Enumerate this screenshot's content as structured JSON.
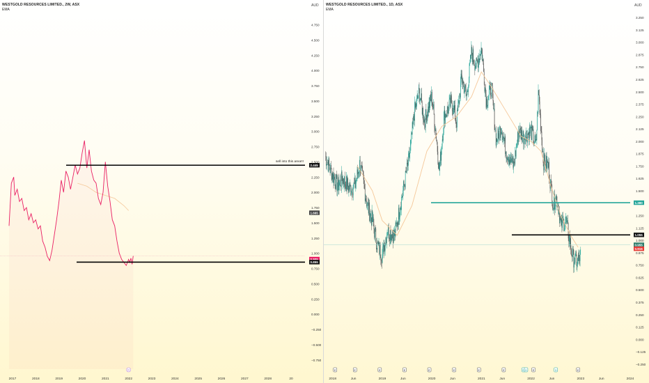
{
  "panes": [
    {
      "symbol": "WESTGOLD RESOURCES LIMITED., 2W, ASX",
      "indicator": "EMA",
      "currency": "AUD",
      "y_ticks": [
        "4.750",
        "4.500",
        "4.250",
        "4.000",
        "3.750",
        "3.500",
        "3.250",
        "3.000",
        "2.750",
        "2.500",
        "2.250",
        "2.000",
        "1.750",
        "1.500",
        "1.250",
        "1.000",
        "0.750",
        "0.500",
        "0.250",
        "0.000",
        "−0.250",
        "−0.500",
        "−0.750"
      ],
      "x_ticks": [
        "2017",
        "2018",
        "2019",
        "2020",
        "2021",
        "2022",
        "2023",
        "2024",
        "2025",
        "2026",
        "2027",
        "2028",
        "20"
      ],
      "annotation": "sell into this area!!!",
      "price_labels": [
        "2.445",
        "1.665",
        "0.905",
        "0.855"
      ],
      "event_markers": [
        "D"
      ],
      "colors": {
        "price": "#e91e63",
        "ema": "#f5c89a",
        "levels": "#000000"
      }
    },
    {
      "symbol": "WESTGOLD RESOURCES LIMITED., 1D, ASX",
      "indicator": "EMA",
      "currency": "AUD",
      "y_ticks": [
        "3.250",
        "3.125",
        "3.000",
        "2.875",
        "2.750",
        "2.625",
        "2.500",
        "2.375",
        "2.250",
        "2.125",
        "2.000",
        "1.875",
        "1.750",
        "1.625",
        "1.500",
        "1.375",
        "1.250",
        "1.125",
        "1.000",
        "0.875",
        "0.750",
        "0.625",
        "0.500",
        "0.375",
        "0.250",
        "0.125",
        "0.000",
        "−0.125",
        "−0.250"
      ],
      "x_ticks": [
        "2018",
        "Jun",
        "2019",
        "Jun",
        "2020",
        "Jun",
        "2021",
        "Jun",
        "2022",
        "Jun",
        "2023",
        "Jun",
        "2024"
      ],
      "price_labels": [
        "1.380",
        "1.055",
        "0.955",
        "0.915"
      ],
      "event_markers": [
        "E",
        "E",
        "E",
        "E",
        "E",
        "E",
        "E",
        "E",
        "D",
        "D",
        "E",
        "D",
        "E"
      ],
      "colors": {
        "candle_up": "#26a69a",
        "candle_down": "#555555",
        "ema": "#f5c89a",
        "level_teal": "#26a69a",
        "level_black": "#000000"
      }
    }
  ],
  "chart_data": [
    {
      "type": "line",
      "title": "WESTGOLD RESOURCES LIMITED., 2W, ASX",
      "xlabel": "",
      "ylabel": "AUD",
      "xlim": [
        2016.7,
        2029.6
      ],
      "ylim": [
        -0.9,
        4.95
      ],
      "grid": false,
      "series": [
        {
          "name": "",
          "x": [
            2016.85,
            2016.95,
            2017.05,
            2017.1,
            2017.2,
            2017.3,
            2017.4,
            2017.5,
            2017.6,
            2017.7,
            2017.8,
            2017.9,
            2018.0,
            2018.1,
            2018.2,
            2018.3,
            2018.4,
            2018.5,
            2018.6,
            2018.7,
            2018.8,
            2018.9,
            2019.0,
            2019.1,
            2019.2,
            2019.3,
            2019.4,
            2019.5,
            2019.6,
            2019.7,
            2019.8,
            2019.9,
            2020.0,
            2020.1,
            2020.2,
            2020.3,
            2020.4,
            2020.5,
            2020.6,
            2020.7,
            2020.8,
            2020.9,
            2021.0,
            2021.1,
            2021.2,
            2021.3,
            2021.4,
            2021.5,
            2021.6,
            2021.7,
            2021.8,
            2021.9,
            2022.0,
            2022.05,
            2022.1,
            2022.15,
            2022.2
          ],
          "values": [
            1.45,
            2.15,
            2.25,
            1.95,
            2.05,
            1.85,
            1.9,
            1.7,
            1.75,
            1.55,
            1.65,
            1.5,
            1.55,
            1.4,
            1.45,
            1.2,
            1.1,
            0.95,
            0.88,
            1.05,
            1.3,
            1.55,
            1.85,
            2.2,
            2.0,
            2.35,
            2.25,
            2.05,
            2.25,
            2.45,
            2.3,
            2.4,
            2.65,
            2.85,
            2.4,
            2.7,
            2.35,
            2.2,
            2.15,
            1.9,
            1.8,
            2.0,
            2.5,
            2.1,
            1.85,
            1.55,
            1.45,
            1.2,
            1.0,
            0.9,
            0.85,
            0.8,
            0.9,
            0.85,
            0.92,
            0.82,
            0.955
          ]
        },
        {
          "name": "EMA",
          "x": [
            2019.8,
            2020.2,
            2020.6,
            2021.0,
            2021.4,
            2021.8,
            2022.0
          ],
          "values": [
            2.15,
            2.1,
            2.0,
            1.95,
            1.9,
            1.78,
            1.7
          ]
        }
      ],
      "horizontal_levels": [
        2.445,
        0.855
      ],
      "price_labels": [
        2.445,
        1.665,
        0.905,
        0.855
      ]
    },
    {
      "type": "line",
      "title": "WESTGOLD RESOURCES LIMITED., 1D, ASX",
      "xlabel": "",
      "ylabel": "AUD",
      "xlim": [
        2017.85,
        2024.0
      ],
      "ylim": [
        -0.3,
        3.3
      ],
      "grid": false,
      "series": [
        {
          "name": "",
          "x": [
            2017.85,
            2017.95,
            2018.1,
            2018.2,
            2018.35,
            2018.45,
            2018.55,
            2018.7,
            2018.8,
            2018.9,
            2019.0,
            2019.1,
            2019.25,
            2019.4,
            2019.55,
            2019.65,
            2019.75,
            2019.85,
            2020.0,
            2020.1,
            2020.15,
            2020.25,
            2020.4,
            2020.5,
            2020.6,
            2020.7,
            2020.8,
            2020.9,
            2021.0,
            2021.1,
            2021.2,
            2021.3,
            2021.4,
            2021.5,
            2021.65,
            2021.75,
            2021.85,
            2022.0,
            2022.1,
            2022.15,
            2022.25,
            2022.35,
            2022.45,
            2022.5,
            2022.55,
            2022.6,
            2022.7,
            2022.85,
            2022.95,
            2023.0
          ],
          "values": [
            1.85,
            1.72,
            1.55,
            1.62,
            1.52,
            1.55,
            1.78,
            1.35,
            1.2,
            0.95,
            0.85,
            1.1,
            1.05,
            1.45,
            1.85,
            2.3,
            2.5,
            2.2,
            2.45,
            2.0,
            1.7,
            2.25,
            2.4,
            2.2,
            2.65,
            2.45,
            2.9,
            2.75,
            2.95,
            2.4,
            2.55,
            2.0,
            2.15,
            1.9,
            1.75,
            2.1,
            2.05,
            2.1,
            1.95,
            2.5,
            1.8,
            1.75,
            1.35,
            1.45,
            1.35,
            1.15,
            1.2,
            0.82,
            0.78,
            0.86
          ]
        },
        {
          "name": "EMA",
          "x": [
            2018.5,
            2018.8,
            2019.0,
            2019.3,
            2019.6,
            2019.9,
            2020.2,
            2020.5,
            2020.8,
            2021.0,
            2021.2,
            2021.5,
            2021.8,
            2022.0,
            2022.2,
            2022.4,
            2022.6,
            2022.8,
            2022.95
          ],
          "values": [
            1.75,
            1.5,
            1.2,
            1.05,
            1.35,
            1.9,
            2.15,
            2.25,
            2.45,
            2.7,
            2.55,
            2.3,
            2.05,
            2.0,
            1.9,
            1.55,
            1.25,
            1.05,
            0.93
          ]
        }
      ],
      "horizontal_levels": [
        1.38,
        1.055,
        0.955
      ],
      "price_labels": [
        1.38,
        1.055,
        0.955,
        0.915
      ]
    }
  ]
}
